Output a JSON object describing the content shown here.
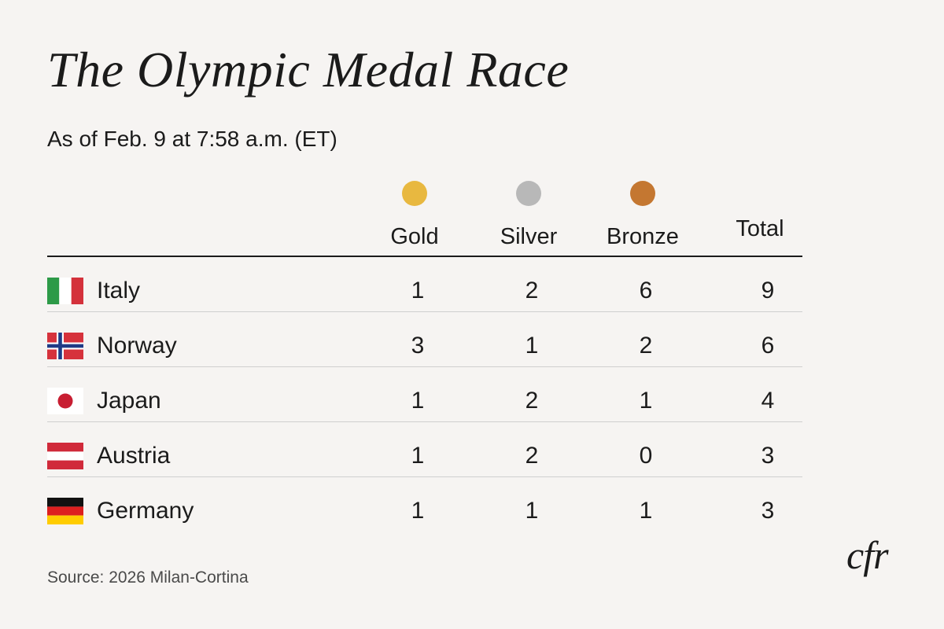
{
  "title": "The Olympic Medal Race",
  "subtitle": "As of Feb. 9 at 7:58 a.m. (ET)",
  "source": "Source: 2026 Milan-Cortina",
  "logo": "cfr",
  "columns": {
    "gold": {
      "label": "Gold",
      "color": "#e8b840"
    },
    "silver": {
      "label": "Silver",
      "color": "#b8b8b8"
    },
    "bronze": {
      "label": "Bronze",
      "color": "#c47731"
    },
    "total": {
      "label": "Total"
    }
  },
  "chart_data": {
    "type": "table",
    "title": "The Olympic Medal Race",
    "subtitle": "As of Feb. 9 at 7:58 a.m. (ET)",
    "columns": [
      "Gold",
      "Silver",
      "Bronze",
      "Total"
    ],
    "rows": [
      {
        "country": "Italy",
        "flag": "italy-flag",
        "gold": 1,
        "silver": 2,
        "bronze": 6,
        "total": 9
      },
      {
        "country": "Norway",
        "flag": "norway-flag",
        "gold": 3,
        "silver": 1,
        "bronze": 2,
        "total": 6
      },
      {
        "country": "Japan",
        "flag": "japan-flag",
        "gold": 1,
        "silver": 2,
        "bronze": 1,
        "total": 4
      },
      {
        "country": "Austria",
        "flag": "austria-flag",
        "gold": 1,
        "silver": 2,
        "bronze": 0,
        "total": 3
      },
      {
        "country": "Germany",
        "flag": "germany-flag",
        "gold": 1,
        "silver": 1,
        "bronze": 1,
        "total": 3
      }
    ]
  }
}
